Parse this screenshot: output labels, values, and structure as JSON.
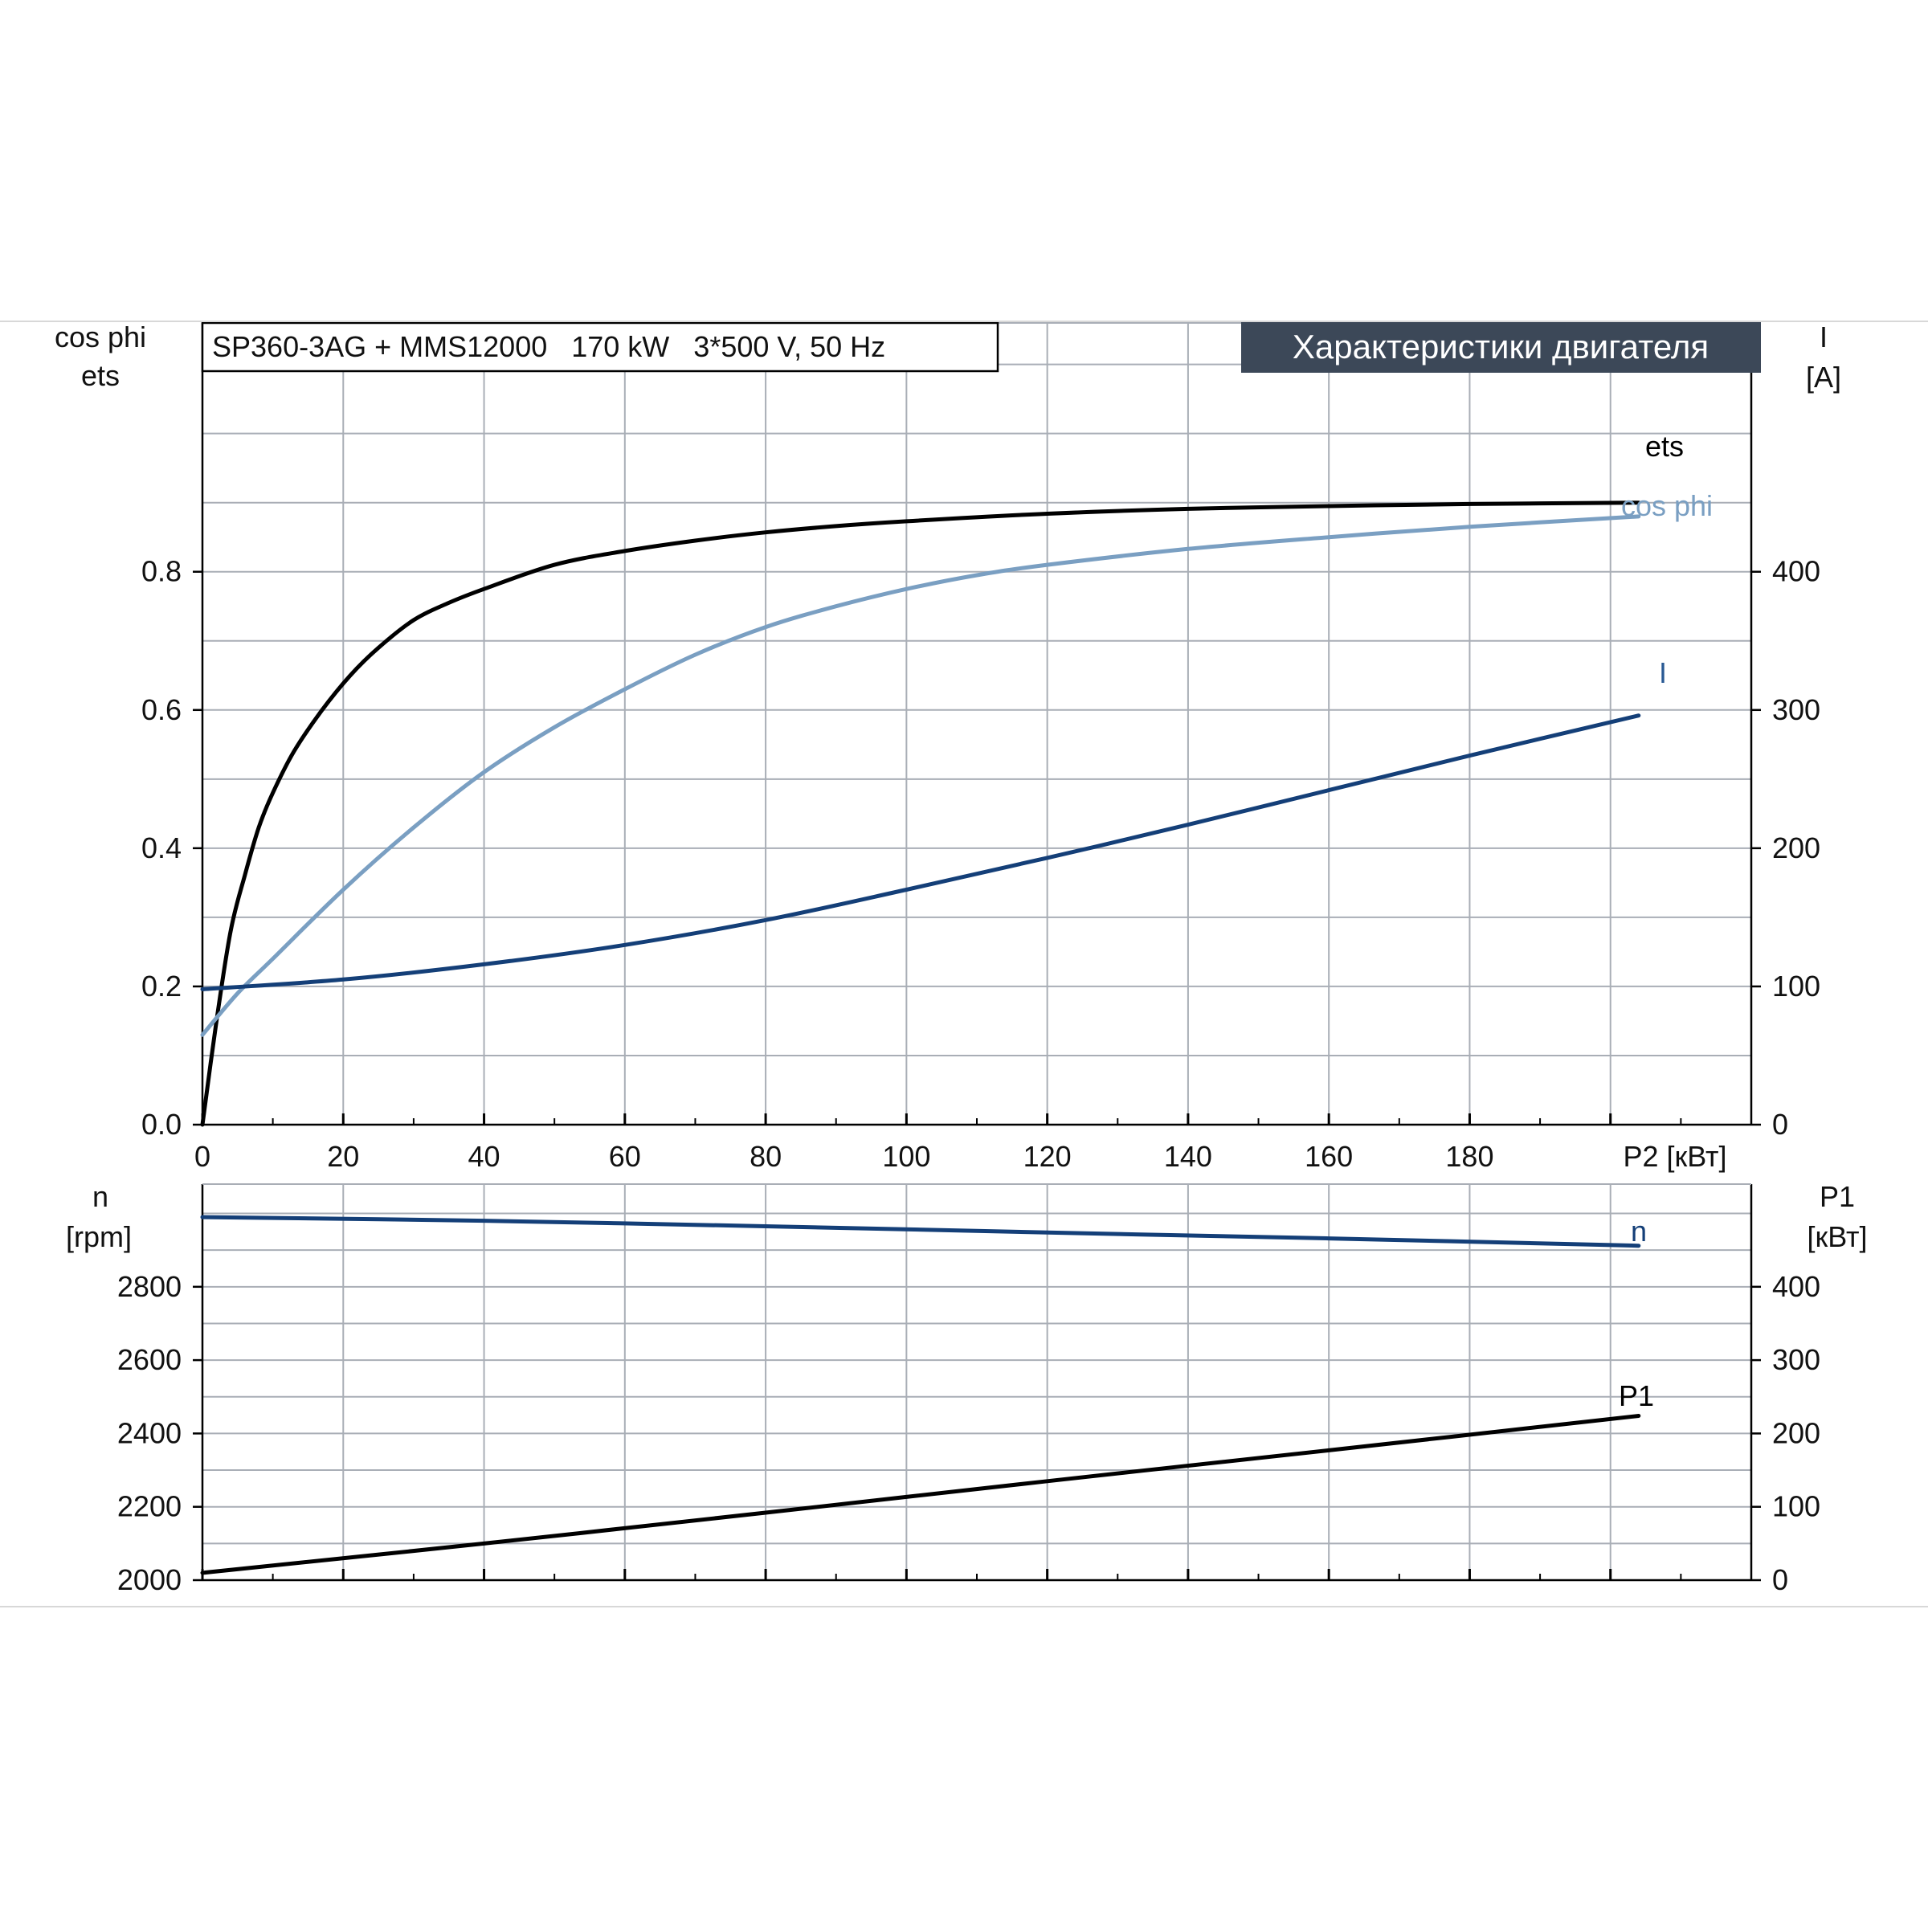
{
  "colors": {
    "black_series": "#000000",
    "light_blue_series": "#7a9fc2",
    "dark_blue_series": "#143f78",
    "badge_bg": "#3c4858",
    "badge_text": "#ffffff",
    "grid": "#a9aeb6"
  },
  "header": {
    "model_label": "SP360-3AG + MMS12000   170 kW   3*500 V, 50 Hz",
    "badge_label": "Характеристики двигателя"
  },
  "chart_data": [
    {
      "type": "line",
      "title": "",
      "x_axis": {
        "label": "P2 [кВт]",
        "range": [
          0,
          220
        ],
        "ticks": [
          0,
          20,
          40,
          60,
          80,
          100,
          120,
          140,
          160,
          180
        ]
      },
      "y_left": {
        "label_line1": "cos phi",
        "label_line2": "ets",
        "range": [
          0,
          1.16
        ],
        "ticks": [
          0.0,
          0.2,
          0.4,
          0.6,
          0.8
        ],
        "tick_labels": [
          "0.0",
          "0.2",
          "0.4",
          "0.6",
          "0.8"
        ]
      },
      "y_right": {
        "label_line1": "I",
        "label_line2": "[A]",
        "range": [
          0,
          580
        ],
        "ticks": [
          0,
          100,
          200,
          300,
          400
        ],
        "tick_labels": [
          "0",
          "100",
          "200",
          "300",
          "400"
        ]
      },
      "grid": true,
      "series": [
        {
          "name": "ets",
          "axis": "left",
          "x": [
            0,
            2,
            4,
            6,
            8,
            10,
            13,
            17,
            21,
            25,
            30,
            35,
            40,
            50,
            60,
            70,
            80,
            90,
            100,
            120,
            140,
            160,
            180,
            204
          ],
          "y": [
            0.0,
            0.15,
            0.28,
            0.36,
            0.43,
            0.48,
            0.54,
            0.6,
            0.65,
            0.69,
            0.73,
            0.755,
            0.775,
            0.81,
            0.83,
            0.845,
            0.857,
            0.866,
            0.873,
            0.884,
            0.891,
            0.895,
            0.898,
            0.9
          ]
        },
        {
          "name": "cos phi",
          "axis": "left",
          "x": [
            0,
            5,
            10,
            20,
            30,
            40,
            50,
            60,
            70,
            80,
            90,
            100,
            110,
            120,
            140,
            160,
            180,
            204
          ],
          "y": [
            0.13,
            0.19,
            0.24,
            0.34,
            0.43,
            0.51,
            0.575,
            0.63,
            0.68,
            0.72,
            0.75,
            0.775,
            0.795,
            0.81,
            0.833,
            0.85,
            0.865,
            0.88
          ]
        },
        {
          "name": "I",
          "axis": "right",
          "x": [
            0,
            20,
            40,
            60,
            80,
            100,
            120,
            140,
            160,
            180,
            204
          ],
          "y": [
            98,
            105,
            116,
            130,
            148,
            170,
            193,
            217,
            242,
            267,
            296
          ]
        }
      ]
    },
    {
      "type": "line",
      "title": "",
      "x_axis": {
        "range": [
          0,
          220
        ]
      },
      "y_left": {
        "label_line1": "n",
        "label_line2": "[rpm]",
        "range": [
          2000,
          3080
        ],
        "ticks": [
          2000,
          2200,
          2400,
          2600,
          2800
        ],
        "tick_labels": [
          "2000",
          "2200",
          "2400",
          "2600",
          "2800"
        ]
      },
      "y_right": {
        "label_line1": "P1",
        "label_line2": "[кВт]",
        "range": [
          0,
          540
        ],
        "ticks": [
          0,
          100,
          200,
          300,
          400
        ],
        "tick_labels": [
          "0",
          "100",
          "200",
          "300",
          "400"
        ]
      },
      "grid": true,
      "series": [
        {
          "name": "n",
          "axis": "left",
          "x": [
            0,
            40,
            80,
            120,
            160,
            204
          ],
          "y": [
            2990,
            2980,
            2965,
            2948,
            2932,
            2912
          ]
        },
        {
          "name": "P1",
          "axis": "right",
          "x": [
            0,
            40,
            80,
            120,
            160,
            204
          ],
          "y": [
            10,
            50,
            92,
            135,
            177,
            224
          ]
        }
      ]
    }
  ]
}
